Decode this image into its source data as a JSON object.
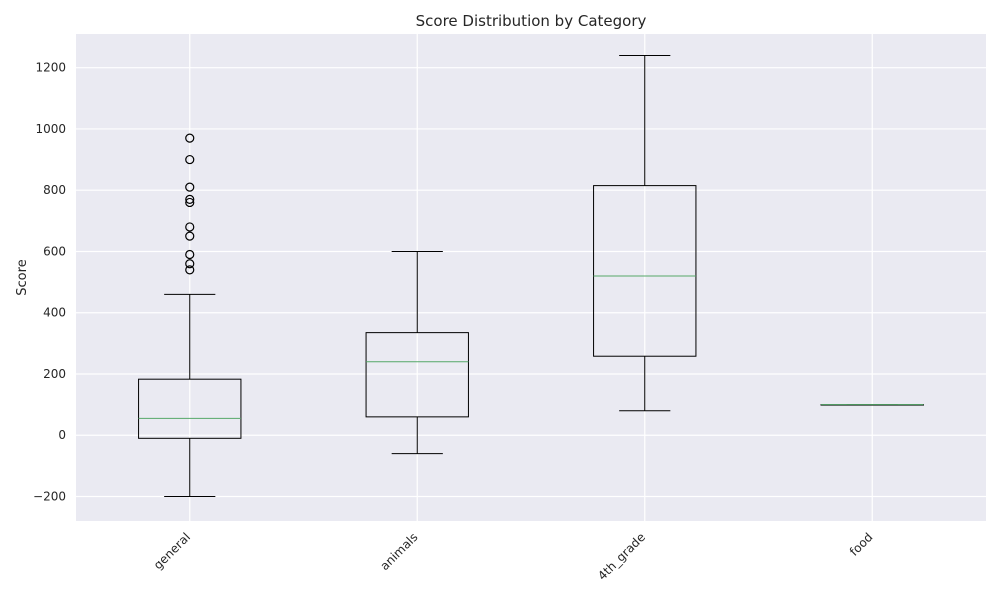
{
  "chart_data": {
    "type": "box",
    "title": "Score Distribution by Category",
    "xlabel": "",
    "ylabel": "Score",
    "ylim": [
      -280,
      1310
    ],
    "yticks": [
      -200,
      0,
      200,
      400,
      600,
      800,
      1000,
      1200
    ],
    "grid": true,
    "colors": {
      "background": "#eaeaf2",
      "grid": "#ffffff",
      "box": "#000000",
      "median": "#55a868",
      "text": "#262626"
    },
    "categories": [
      "general",
      "animals",
      "4th_grade",
      "food"
    ],
    "boxes": [
      {
        "label": "general",
        "whisker_low": -200,
        "q1": -10,
        "median": 55,
        "q3": 183,
        "whisker_high": 460,
        "outliers": [
          540,
          560,
          590,
          650,
          680,
          760,
          770,
          810,
          900,
          970
        ]
      },
      {
        "label": "animals",
        "whisker_low": -60,
        "q1": 60,
        "median": 240,
        "q3": 335,
        "whisker_high": 600,
        "outliers": []
      },
      {
        "label": "4th_grade",
        "whisker_low": 80,
        "q1": 258,
        "median": 520,
        "q3": 815,
        "whisker_high": 1240,
        "outliers": []
      },
      {
        "label": "food",
        "whisker_low": 100,
        "q1": 100,
        "median": 100,
        "q3": 100,
        "whisker_high": 100,
        "outliers": []
      }
    ]
  }
}
